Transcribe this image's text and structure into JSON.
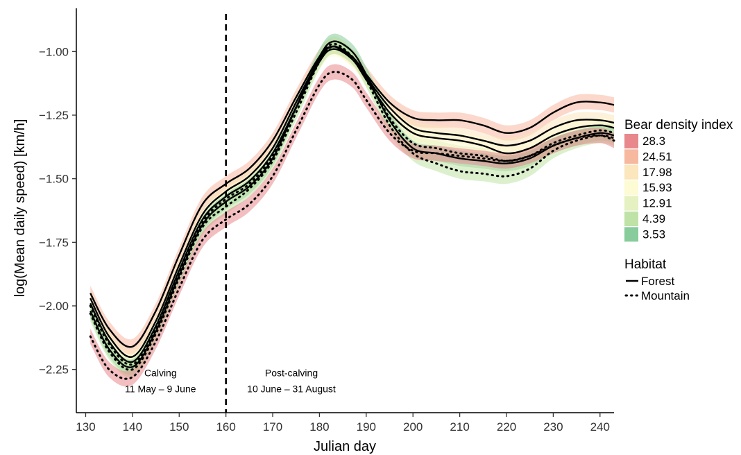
{
  "chart_data": {
    "type": "line",
    "xlabel": "Julian day",
    "ylabel": "log(Mean daily speed) [km/h]",
    "xlim": [
      128,
      243
    ],
    "ylim": [
      -2.42,
      -0.83
    ],
    "x_ticks": [
      130,
      140,
      150,
      160,
      170,
      180,
      190,
      200,
      210,
      220,
      230,
      240
    ],
    "y_ticks": [
      -2.25,
      -2.0,
      -1.75,
      -1.5,
      -1.25,
      -1.0
    ],
    "y_tick_labels": [
      "−2.25",
      "−2.00",
      "−1.75",
      "−1.50",
      "−1.25",
      "−1.00"
    ],
    "grid": false,
    "vline": {
      "x": 160,
      "style": "dashed"
    },
    "annotations": [
      {
        "line1": "Calving",
        "line2": "11 May – 9 June",
        "x": 146,
        "y": -2.31
      },
      {
        "line1": "Post-calving",
        "line2": "10 June – 31 August",
        "x": 174,
        "y": -2.31
      }
    ],
    "legend": {
      "position": "right",
      "density_title": "Bear density index",
      "density": [
        {
          "label": "28.3",
          "color": "#e8888c"
        },
        {
          "label": "24.51",
          "color": "#f7b8a0"
        },
        {
          "label": "17.98",
          "color": "#fbe6bd"
        },
        {
          "label": "15.93",
          "color": "#fdfbd3"
        },
        {
          "label": "12.91",
          "color": "#e5f1c0"
        },
        {
          "label": "4.39",
          "color": "#bfe3a6"
        },
        {
          "label": "3.53",
          "color": "#88cc9b"
        }
      ],
      "habitat_title": "Habitat",
      "habitat": [
        {
          "label": "Forest",
          "style": "solid"
        },
        {
          "label": "Mountain",
          "style": "dotted"
        }
      ]
    },
    "x": [
      131,
      135,
      140,
      145,
      150,
      155,
      160,
      165,
      170,
      175,
      180,
      183,
      187,
      190,
      195,
      200,
      205,
      210,
      215,
      220,
      225,
      230,
      235,
      240,
      243
    ],
    "series": [
      {
        "density": "24.51",
        "habitat": "Forest",
        "band_color": "#f7b8a0",
        "half_width": 0.03,
        "values": [
          -1.95,
          -2.09,
          -2.16,
          -2.02,
          -1.8,
          -1.6,
          -1.52,
          -1.46,
          -1.35,
          -1.18,
          -1.02,
          -0.98,
          -1.02,
          -1.09,
          -1.2,
          -1.26,
          -1.27,
          -1.27,
          -1.29,
          -1.32,
          -1.3,
          -1.24,
          -1.2,
          -1.2,
          -1.21
        ]
      },
      {
        "density": "17.98",
        "habitat": "Forest",
        "band_color": "#fbe6bd",
        "half_width": 0.03,
        "values": [
          -1.97,
          -2.12,
          -2.2,
          -2.06,
          -1.84,
          -1.64,
          -1.55,
          -1.49,
          -1.38,
          -1.2,
          -1.03,
          -0.98,
          -1.03,
          -1.1,
          -1.22,
          -1.3,
          -1.32,
          -1.33,
          -1.35,
          -1.37,
          -1.35,
          -1.3,
          -1.27,
          -1.27,
          -1.28
        ]
      },
      {
        "density": "15.93",
        "habitat": "Forest",
        "band_color": "#fdfbd3",
        "half_width": 0.03,
        "values": [
          -1.99,
          -2.14,
          -2.22,
          -2.08,
          -1.86,
          -1.66,
          -1.57,
          -1.51,
          -1.4,
          -1.22,
          -1.04,
          -0.99,
          -1.03,
          -1.11,
          -1.24,
          -1.32,
          -1.34,
          -1.35,
          -1.37,
          -1.4,
          -1.38,
          -1.33,
          -1.3,
          -1.29,
          -1.3
        ]
      },
      {
        "density": "12.91",
        "habitat": "Mountain",
        "band_color": "#e5f1c0",
        "half_width": 0.03,
        "values": [
          -2.0,
          -2.15,
          -2.23,
          -2.09,
          -1.87,
          -1.67,
          -1.58,
          -1.52,
          -1.41,
          -1.22,
          -1.03,
          -0.97,
          -1.02,
          -1.1,
          -1.26,
          -1.36,
          -1.38,
          -1.4,
          -1.41,
          -1.43,
          -1.41,
          -1.36,
          -1.33,
          -1.31,
          -1.32
        ]
      },
      {
        "density": "3.53",
        "habitat": "Forest",
        "band_color": "#88cc9b",
        "half_width": 0.03,
        "values": [
          -2.02,
          -2.17,
          -2.24,
          -2.1,
          -1.88,
          -1.68,
          -1.59,
          -1.53,
          -1.42,
          -1.22,
          -1.02,
          -0.96,
          -1.0,
          -1.09,
          -1.27,
          -1.38,
          -1.4,
          -1.42,
          -1.43,
          -1.44,
          -1.42,
          -1.37,
          -1.34,
          -1.32,
          -1.33
        ]
      },
      {
        "density": "4.39",
        "habitat": "Mountain",
        "band_color": "#bfe3a6",
        "half_width": 0.03,
        "values": [
          -2.03,
          -2.18,
          -2.25,
          -2.11,
          -1.89,
          -1.69,
          -1.61,
          -1.54,
          -1.43,
          -1.24,
          -1.04,
          -0.98,
          -1.02,
          -1.11,
          -1.29,
          -1.4,
          -1.44,
          -1.47,
          -1.48,
          -1.49,
          -1.46,
          -1.39,
          -1.35,
          -1.33,
          -1.34
        ]
      },
      {
        "density": "28.3",
        "habitat": "Mountain",
        "band_color": "#e8888c",
        "half_width": 0.03,
        "values": [
          -2.12,
          -2.25,
          -2.28,
          -2.14,
          -1.93,
          -1.74,
          -1.66,
          -1.6,
          -1.49,
          -1.31,
          -1.13,
          -1.08,
          -1.11,
          -1.19,
          -1.32,
          -1.39,
          -1.4,
          -1.41,
          -1.42,
          -1.43,
          -1.41,
          -1.37,
          -1.34,
          -1.33,
          -1.35
        ]
      }
    ]
  }
}
